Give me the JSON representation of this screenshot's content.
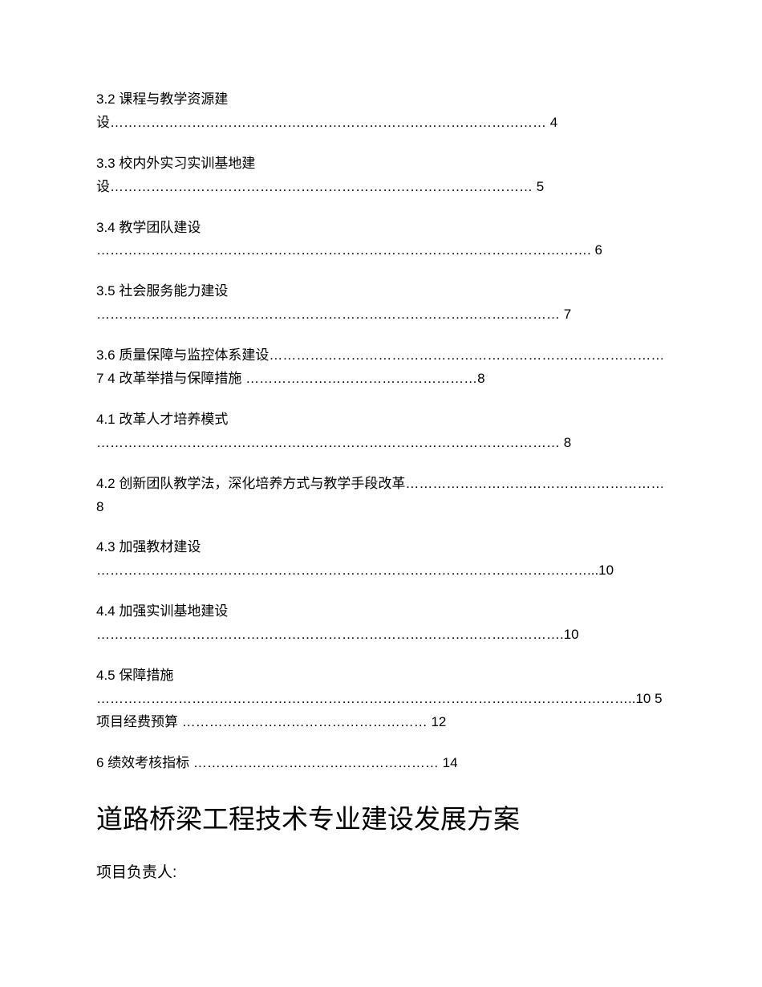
{
  "toc_entries": [
    "3.2 课程与教学资源建设……………………………………………………………………………………  4",
    "3.3 校内外实习实训基地建设…………………………………………………………………………………  5",
    "3.4 教学团队建设 ……………………………………………………………………………………………….  6",
    "3.5 社会服务能力建设 …………………………………………………………………………………………  7",
    "3.6 质量保障与监控体系建设……………………………………………………………………………  7  4  改革举措与保障措施  ……………………………………………8",
    "4.1 改革人才培养模式 …………………………………………………………………………………………  8",
    "4.2 创新团队教学法，深化培养方式与教学手段改革…………………………………………………  8",
    "4.3 加强教材建设 ………………………………………………………………………………………………...10",
    "4.4 加强实训基地建设 ………………………………………………………………………………………….10",
    "4.5 保障措施 ………………………………………………………………………………………………………..10 5  项目经费预算  ……………………………………………… 12",
    "6  绩效考核指标  ……………………………………………… 14"
  ],
  "main_title": "道路桥梁工程技术专业建设发展方案",
  "subtitle": "项目负责人:",
  "colors": {
    "background": "#ffffff",
    "text": "#000000"
  },
  "typography": {
    "body_fontsize": 17,
    "title_fontsize": 33,
    "subtitle_fontsize": 19,
    "font_family": "Microsoft YaHei"
  }
}
